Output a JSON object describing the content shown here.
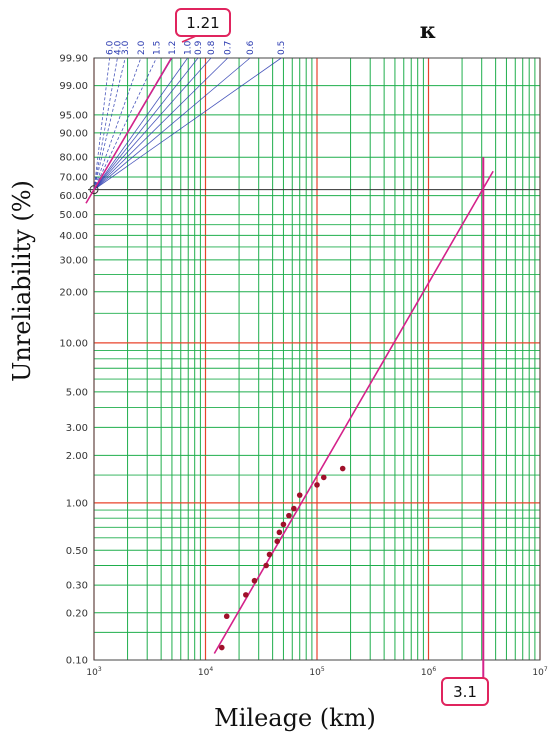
{
  "chart_data": {
    "type": "scatter",
    "scale": "weibull-probability",
    "title": "κ",
    "xlabel": "Mileage (km)",
    "ylabel": "Unreliability (%)",
    "xlim": [
      1000,
      10000000
    ],
    "ylim": [
      0.1,
      99.9
    ],
    "x_scale": "log",
    "y_scale": "weibull",
    "x_ticks": [
      {
        "base": "10",
        "exp": "3"
      },
      {
        "base": "10",
        "exp": "4"
      },
      {
        "base": "10",
        "exp": "5"
      },
      {
        "base": "10",
        "exp": "6"
      },
      {
        "base": "10",
        "exp": "7"
      }
    ],
    "y_ticks": [
      "0.10",
      "0.20",
      "0.30",
      "0.50",
      "1.00",
      "2.00",
      "3.00",
      "5.00",
      "10.00",
      "20.00",
      "30.00",
      "40.00",
      "50.00",
      "60.00",
      "70.00",
      "80.00",
      "90.00",
      "95.00",
      "99.00",
      "99.90"
    ],
    "slope_scale": [
      "6.0",
      "4.0",
      "3.0",
      "2.0",
      "1.5",
      "1.2",
      "1.0",
      "0.9",
      "0.8",
      "0.7",
      "0.6",
      "0.5"
    ],
    "points": [
      {
        "x": 14000,
        "y": 0.12
      },
      {
        "x": 15500,
        "y": 0.19
      },
      {
        "x": 23000,
        "y": 0.26
      },
      {
        "x": 27500,
        "y": 0.32
      },
      {
        "x": 35000,
        "y": 0.4
      },
      {
        "x": 37500,
        "y": 0.47
      },
      {
        "x": 44000,
        "y": 0.57
      },
      {
        "x": 46000,
        "y": 0.65
      },
      {
        "x": 50000,
        "y": 0.73
      },
      {
        "x": 56000,
        "y": 0.83
      },
      {
        "x": 62000,
        "y": 0.92
      },
      {
        "x": 70000,
        "y": 1.12
      },
      {
        "x": 100000,
        "y": 1.3
      },
      {
        "x": 115000,
        "y": 1.45
      },
      {
        "x": 170000,
        "y": 1.65
      }
    ],
    "fit_line": {
      "x": [
        12000,
        3800000
      ],
      "y": [
        0.11,
        73
      ]
    },
    "eta_mileage": 3100000,
    "shape_indicator": {
      "pivot": {
        "x": 1000,
        "y": 63.2
      },
      "slope": 1.21
    },
    "annotations": {
      "shape": "1.21",
      "scale": "3.1"
    }
  }
}
